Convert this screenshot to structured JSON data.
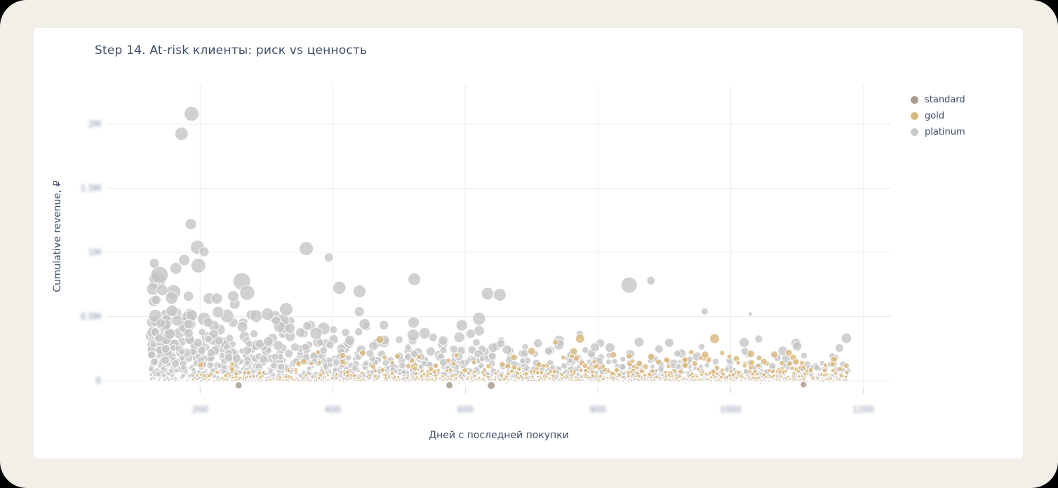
{
  "page": {
    "background": "#f2efe8",
    "card_background": "#ffffff"
  },
  "chart": {
    "title": "Step 14. At-risk клиенты: риск vs ценность",
    "title_color": "#3c4e68"
  },
  "legend": [
    {
      "label": "standard",
      "color": "#a79d92"
    },
    {
      "label": "gold",
      "color": "#d9b97e"
    },
    {
      "label": "platinum",
      "color": "#cbcbcb"
    }
  ],
  "chart_data": {
    "type": "scatter",
    "title": "Step 14. At-risk клиенты: риск vs ценность",
    "xlabel": "Дней с последней покупки",
    "ylabel": "Cumulative revenue, ₽",
    "legend_position": "top-right",
    "grid": true,
    "xlim": [
      59,
      1242
    ],
    "ylim": [
      -65600,
      2311000
    ],
    "x_ticks": [
      {
        "value": 200,
        "label": "200"
      },
      {
        "value": 400,
        "label": "400"
      },
      {
        "value": 600,
        "label": "600"
      },
      {
        "value": 800,
        "label": "800"
      },
      {
        "value": 1000,
        "label": "1000"
      },
      {
        "value": 1200,
        "label": "1200"
      }
    ],
    "y_ticks": [
      {
        "value": 0,
        "label": "0"
      },
      {
        "value": 500000,
        "label": "0.5M"
      },
      {
        "value": 1000000,
        "label": "1M"
      },
      {
        "value": 1500000,
        "label": "1.5M"
      },
      {
        "value": 2000000,
        "label": "2M"
      }
    ],
    "marker_opacity": 0.8,
    "size_ref_y": 1050000,
    "series": [
      {
        "name": "platinum",
        "color": "#c6c6c6",
        "count": 1600,
        "seed": 42,
        "x_range": [
          126,
          1178
        ],
        "x_bias": 1.35,
        "y_mean": {
          "base": 40000,
          "amp": 150000,
          "decay": 500
        },
        "y_offset": 0,
        "y_clamp": [
          1500,
          1050000
        ],
        "drop": {
          "rate": 0.02,
          "amount": 30000
        },
        "size": [
          1.3,
          11.5
        ]
      },
      {
        "name": "gold",
        "color": "#d8b77c",
        "count": 650,
        "seed": 13,
        "x_range": [
          180,
          1180
        ],
        "x_bias": 0.8,
        "y_mean": {
          "base": 52000,
          "amp": 0,
          "decay": 1
        },
        "y_offset": 0,
        "y_clamp": [
          1200,
          430000
        ],
        "drop": {
          "rate": 0.02,
          "amount": 20000
        },
        "size": [
          1.3,
          9
        ]
      },
      {
        "name": "standard",
        "color": "#a2978a",
        "count": 170,
        "seed": 7,
        "x_range": [
          200,
          1160
        ],
        "x_bias": 1.0,
        "y_mean": {
          "base": 16000,
          "amp": 0,
          "decay": 1
        },
        "y_offset": -6000,
        "y_clamp": [
          -50000,
          90000
        ],
        "drop": {
          "rate": 0.05,
          "amount": 15000
        },
        "size": [
          1.2,
          4
        ]
      }
    ],
    "outliers": [
      {
        "series": "platinum",
        "x": 187,
        "y": 2080000,
        "r": 10.5
      },
      {
        "series": "platinum",
        "x": 172,
        "y": 1925000,
        "r": 9.5
      },
      {
        "series": "platinum",
        "x": 186,
        "y": 1220000,
        "r": 8
      },
      {
        "series": "platinum",
        "x": 196,
        "y": 1040000,
        "r": 10
      },
      {
        "series": "platinum",
        "x": 206,
        "y": 1005000,
        "r": 7
      },
      {
        "series": "platinum",
        "x": 176,
        "y": 940000,
        "r": 8
      },
      {
        "series": "platinum",
        "x": 131,
        "y": 915000,
        "r": 7
      },
      {
        "series": "platinum",
        "x": 143,
        "y": 705000,
        "r": 8
      },
      {
        "series": "platinum",
        "x": 157,
        "y": 645000,
        "r": 9
      },
      {
        "series": "platinum",
        "x": 360,
        "y": 1030000,
        "r": 10
      },
      {
        "series": "platinum",
        "x": 394,
        "y": 960000,
        "r": 6.5
      },
      {
        "series": "platinum",
        "x": 523,
        "y": 790000,
        "r": 9
      },
      {
        "series": "platinum",
        "x": 652,
        "y": 670000,
        "r": 9
      },
      {
        "series": "platinum",
        "x": 847,
        "y": 745000,
        "r": 11.5
      },
      {
        "series": "platinum",
        "x": 880,
        "y": 780000,
        "r": 6
      },
      {
        "series": "platinum",
        "x": 961,
        "y": 540000,
        "r": 5
      },
      {
        "series": "platinum",
        "x": 1030,
        "y": 520000,
        "r": 3
      },
      {
        "series": "gold",
        "x": 976,
        "y": 328000,
        "r": 7
      },
      {
        "series": "gold",
        "x": 773,
        "y": 328000,
        "r": 6.5
      },
      {
        "series": "gold",
        "x": 700,
        "y": 230000,
        "r": 5.5
      },
      {
        "series": "standard",
        "x": 258,
        "y": -36000,
        "r": 5
      },
      {
        "series": "standard",
        "x": 576,
        "y": -35000,
        "r": 5
      },
      {
        "series": "standard",
        "x": 639,
        "y": -38000,
        "r": 5.5
      },
      {
        "series": "standard",
        "x": 1110,
        "y": -30000,
        "r": 4.5
      }
    ]
  }
}
